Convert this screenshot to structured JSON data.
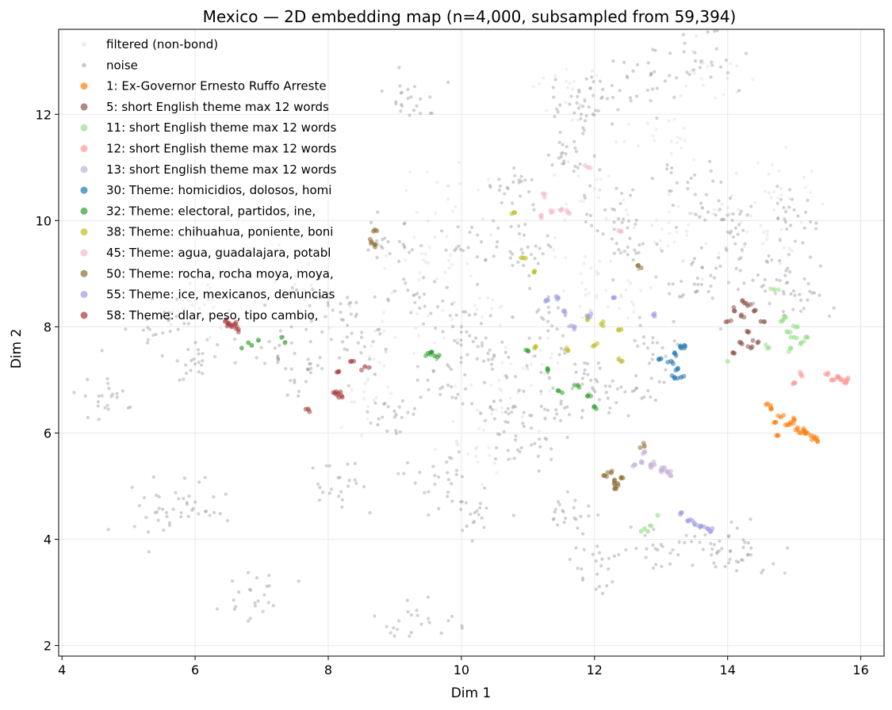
{
  "chart_data": {
    "type": "scatter",
    "title": "Mexico — 2D embedding map (n=4,000, subsampled from 59,394)",
    "xlabel": "Dim 1",
    "ylabel": "Dim 2",
    "xlim": [
      3.95,
      16.35
    ],
    "ylim": [
      1.8,
      13.6
    ],
    "xticks": [
      4,
      6,
      8,
      10,
      12,
      14,
      16
    ],
    "yticks": [
      2,
      4,
      6,
      8,
      10,
      12
    ],
    "grid": true,
    "legend_placement": "top-left",
    "series": [
      {
        "name": "filtered (non-bond)",
        "color": "#c8c8c8",
        "points": [
          [
            9.5,
            9.2
          ],
          [
            10.2,
            8.4
          ],
          [
            11.0,
            7.2
          ],
          [
            10.6,
            6.8
          ],
          [
            11.8,
            9.0
          ],
          [
            12.4,
            8.6
          ],
          [
            13.2,
            9.6
          ],
          [
            13.8,
            10.2
          ],
          [
            14.6,
            9.8
          ],
          [
            9.0,
            7.8
          ],
          [
            8.6,
            6.5
          ],
          [
            10.1,
            5.6
          ],
          [
            12.9,
            11.5
          ],
          [
            11.6,
            12.5
          ],
          [
            13.7,
            12.9
          ],
          [
            14.8,
            10.6
          ],
          [
            7.5,
            8.8
          ],
          [
            6.2,
            8.5
          ],
          [
            9.8,
            10.4
          ],
          [
            12.0,
            10.6
          ]
        ]
      },
      {
        "name": "noise",
        "color": "#9a9a9a",
        "points": [
          [
            10.0,
            8.0
          ],
          [
            10.4,
            7.5
          ],
          [
            9.8,
            6.9
          ],
          [
            11.3,
            8.1
          ],
          [
            11.9,
            7.1
          ],
          [
            12.8,
            7.6
          ],
          [
            13.5,
            8.8
          ],
          [
            12.5,
            9.5
          ],
          [
            14.2,
            9.3
          ],
          [
            14.9,
            9.1
          ],
          [
            15.1,
            8.5
          ],
          [
            11.5,
            11.2
          ],
          [
            11.8,
            12.0
          ],
          [
            12.1,
            12.3
          ],
          [
            10.7,
            10.6
          ],
          [
            10.3,
            9.6
          ],
          [
            9.3,
            8.6
          ],
          [
            8.9,
            9.6
          ],
          [
            8.0,
            8.4
          ],
          [
            7.2,
            7.6
          ],
          [
            6.0,
            7.3
          ],
          [
            5.5,
            8.2
          ],
          [
            9.6,
            5.2
          ],
          [
            10.2,
            4.5
          ],
          [
            11.1,
            5.8
          ],
          [
            11.7,
            4.4
          ],
          [
            12.1,
            3.5
          ],
          [
            13.0,
            3.9
          ],
          [
            13.8,
            3.9
          ],
          [
            14.3,
            3.7
          ],
          [
            9.4,
            2.4
          ],
          [
            6.9,
            2.8
          ],
          [
            4.6,
            6.7
          ],
          [
            5.4,
            4.5
          ],
          [
            6.0,
            4.7
          ],
          [
            8.3,
            5.0
          ],
          [
            13.6,
            13.0
          ],
          [
            12.9,
            12.8
          ],
          [
            9.2,
            12.3
          ],
          [
            7.7,
            7.2
          ],
          [
            11.0,
            9.5
          ],
          [
            12.3,
            10.2
          ],
          [
            13.4,
            10.6
          ],
          [
            14.0,
            10.1
          ],
          [
            15.0,
            10.2
          ],
          [
            8.5,
            7.8
          ],
          [
            9.0,
            6.3
          ],
          [
            10.7,
            6.2
          ],
          [
            11.5,
            6.6
          ],
          [
            12.6,
            6.8
          ]
        ]
      },
      {
        "name": "1: Ex-Governor Ernesto Ruffo Arreste",
        "color": "#ff7f0e",
        "points": [
          [
            14.65,
            6.45
          ],
          [
            14.8,
            6.3
          ],
          [
            14.95,
            6.2
          ],
          [
            15.05,
            6.1
          ],
          [
            15.15,
            6.05
          ],
          [
            15.2,
            6.0
          ],
          [
            15.25,
            5.95
          ],
          [
            15.3,
            5.9
          ],
          [
            15.1,
            6.0
          ],
          [
            14.9,
            6.15
          ],
          [
            14.7,
            6.2
          ],
          [
            15.35,
            5.85
          ],
          [
            14.6,
            6.55
          ],
          [
            15.0,
            6.25
          ],
          [
            14.75,
            5.95
          ]
        ]
      },
      {
        "name": "5: short English theme max 12 words",
        "color": "#8c564b",
        "points": [
          [
            14.1,
            8.3
          ],
          [
            14.2,
            8.2
          ],
          [
            14.3,
            8.4
          ],
          [
            14.4,
            8.3
          ],
          [
            14.2,
            7.7
          ],
          [
            14.35,
            7.6
          ],
          [
            14.1,
            7.5
          ],
          [
            14.5,
            8.1
          ],
          [
            14.3,
            7.9
          ],
          [
            14.45,
            7.7
          ],
          [
            14.0,
            8.1
          ],
          [
            14.25,
            8.45
          ]
        ]
      },
      {
        "name": "11: short English theme max 12 words",
        "color": "#98df8a",
        "points": [
          [
            14.8,
            8.1
          ],
          [
            14.9,
            7.9
          ],
          [
            15.0,
            7.8
          ],
          [
            15.1,
            7.7
          ],
          [
            15.05,
            8.0
          ],
          [
            14.95,
            7.6
          ],
          [
            15.2,
            7.8
          ],
          [
            14.85,
            8.2
          ],
          [
            14.7,
            8.7
          ],
          [
            14.6,
            7.6
          ]
        ]
      },
      {
        "name": "12: short English theme max 12 words",
        "color": "#ff9896",
        "points": [
          [
            15.6,
            7.0
          ],
          [
            15.7,
            7.0
          ],
          [
            15.75,
            6.95
          ],
          [
            15.65,
            7.05
          ],
          [
            15.5,
            7.1
          ],
          [
            15.8,
            7.0
          ],
          [
            15.1,
            7.1
          ],
          [
            15.0,
            6.95
          ]
        ]
      },
      {
        "name": "13: short English theme max 12 words",
        "color": "#c5b0d5",
        "points": [
          [
            12.7,
            5.45
          ],
          [
            12.9,
            5.4
          ],
          [
            13.0,
            5.3
          ],
          [
            13.1,
            5.25
          ],
          [
            13.15,
            5.2
          ],
          [
            12.85,
            5.35
          ],
          [
            13.05,
            5.35
          ],
          [
            12.75,
            5.65
          ],
          [
            12.6,
            5.4
          ]
        ]
      },
      {
        "name": "30: Theme: homicidios, dolosos, homi",
        "color": "#1f77b4",
        "points": [
          [
            13.3,
            7.6
          ],
          [
            13.35,
            7.65
          ],
          [
            13.2,
            7.5
          ],
          [
            13.15,
            7.35
          ],
          [
            13.25,
            7.2
          ],
          [
            13.2,
            7.05
          ],
          [
            13.0,
            7.4
          ],
          [
            13.3,
            7.05
          ]
        ]
      },
      {
        "name": "32: Theme: electoral, partidos, ine,",
        "color": "#2ca02c",
        "points": [
          [
            9.5,
            7.5
          ],
          [
            9.55,
            7.52
          ],
          [
            9.6,
            7.45
          ],
          [
            11.0,
            7.55
          ],
          [
            11.3,
            7.2
          ],
          [
            11.45,
            6.8
          ],
          [
            11.75,
            6.9
          ],
          [
            11.9,
            6.7
          ],
          [
            12.0,
            6.5
          ]
        ]
      },
      {
        "name": "38: Theme: chihuahua, poniente, boni",
        "color": "#bcbd22",
        "points": [
          [
            10.9,
            9.3
          ],
          [
            11.1,
            9.05
          ],
          [
            11.9,
            8.15
          ],
          [
            12.1,
            8.05
          ],
          [
            12.4,
            7.95
          ],
          [
            12.4,
            7.35
          ],
          [
            11.6,
            7.55
          ],
          [
            11.1,
            7.6
          ],
          [
            10.8,
            10.15
          ],
          [
            12.0,
            7.65
          ]
        ]
      },
      {
        "name": "45: Theme: agua, guadalajara, potabl",
        "color": "#f7b6d2",
        "points": [
          [
            11.2,
            10.1
          ],
          [
            11.35,
            10.15
          ],
          [
            11.5,
            10.2
          ],
          [
            11.6,
            10.15
          ],
          [
            11.25,
            10.5
          ],
          [
            11.9,
            11.0
          ],
          [
            12.4,
            9.8
          ]
        ]
      },
      {
        "name": "50: Theme: rocha, rocha moya, moya,",
        "color": "#8c6d31",
        "points": [
          [
            12.3,
            5.1
          ],
          [
            12.35,
            5.05
          ],
          [
            12.25,
            5.25
          ],
          [
            12.4,
            5.15
          ],
          [
            12.3,
            4.95
          ],
          [
            12.15,
            5.2
          ],
          [
            8.65,
            9.6
          ],
          [
            8.68,
            9.8
          ],
          [
            8.7,
            9.55
          ],
          [
            12.65,
            9.15
          ],
          [
            12.75,
            5.75
          ]
        ]
      },
      {
        "name": "55: Theme: ice, mexicanos, denuncias",
        "color": "#9e9ae6",
        "points": [
          [
            13.6,
            4.25
          ],
          [
            13.7,
            4.2
          ],
          [
            13.75,
            4.15
          ],
          [
            13.5,
            4.3
          ],
          [
            13.4,
            4.35
          ],
          [
            13.3,
            4.5
          ],
          [
            11.3,
            8.5
          ],
          [
            11.45,
            8.55
          ],
          [
            11.55,
            8.3
          ],
          [
            11.9,
            8.2
          ],
          [
            12.3,
            8.55
          ],
          [
            12.9,
            8.2
          ],
          [
            11.7,
            8.0
          ]
        ]
      },
      {
        "name": "58: Theme: dlar, peso, tipo cambio,",
        "color": "#a63b3b",
        "points": [
          [
            6.45,
            8.1
          ],
          [
            6.5,
            8.05
          ],
          [
            6.55,
            8.0
          ],
          [
            6.6,
            8.05
          ],
          [
            8.1,
            6.75
          ],
          [
            8.15,
            6.75
          ],
          [
            8.2,
            6.7
          ],
          [
            8.15,
            7.15
          ],
          [
            8.35,
            7.35
          ],
          [
            8.55,
            7.25
          ],
          [
            7.7,
            6.45
          ],
          [
            6.65,
            7.95
          ]
        ]
      }
    ],
    "extra_points": [
      {
        "series_index": 4,
        "points": [
          [
            12.75,
            4.2
          ],
          [
            12.8,
            4.15
          ],
          [
            12.7,
            4.15
          ],
          [
            12.85,
            4.25
          ],
          [
            12.95,
            4.45
          ],
          [
            14.0,
            7.35
          ]
        ]
      },
      {
        "series_index": 8,
        "points": [
          [
            6.7,
            7.6
          ],
          [
            6.8,
            7.7
          ],
          [
            6.95,
            7.75
          ],
          [
            7.3,
            7.8
          ],
          [
            7.35,
            7.7
          ],
          [
            6.85,
            7.65
          ]
        ]
      }
    ]
  }
}
